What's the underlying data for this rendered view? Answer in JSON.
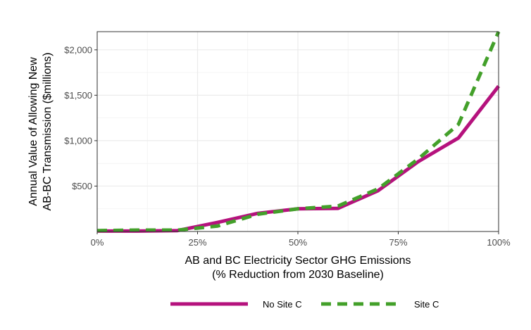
{
  "chart_data": {
    "type": "line",
    "title": "",
    "xlabel_lines": [
      "AB and BC Electricity Sector GHG Emissions",
      "(% Reduction from 2030 Baseline)"
    ],
    "ylabel_lines": [
      "Annual Value of Allowing New",
      "AB-BC Transmission ($millions)"
    ],
    "x_ticks": [
      {
        "value": 0,
        "label": "0%"
      },
      {
        "value": 25,
        "label": "25%"
      },
      {
        "value": 50,
        "label": "50%"
      },
      {
        "value": 75,
        "label": "75%"
      },
      {
        "value": 100,
        "label": "100%"
      }
    ],
    "y_ticks": [
      {
        "value": 500,
        "label": "$500"
      },
      {
        "value": 1000,
        "label": "$1,000"
      },
      {
        "value": 1500,
        "label": "$1,500"
      },
      {
        "value": 2000,
        "label": "$2,000"
      }
    ],
    "xlim": [
      0,
      100
    ],
    "ylim": [
      0,
      2200
    ],
    "grid": true,
    "legend_position": "bottom",
    "series": [
      {
        "name": "No Site C",
        "color": "#b5127d",
        "style": "solid",
        "x": [
          0,
          10,
          20,
          30,
          40,
          50,
          60,
          70,
          80,
          90,
          100
        ],
        "y": [
          5,
          5,
          10,
          100,
          200,
          250,
          255,
          450,
          770,
          1030,
          1600
        ]
      },
      {
        "name": "Site C",
        "color": "#43a02a",
        "style": "dashed",
        "x": [
          0,
          10,
          20,
          30,
          40,
          50,
          60,
          70,
          80,
          90,
          100
        ],
        "y": [
          10,
          15,
          15,
          60,
          190,
          250,
          280,
          470,
          800,
          1180,
          2200
        ]
      }
    ]
  }
}
